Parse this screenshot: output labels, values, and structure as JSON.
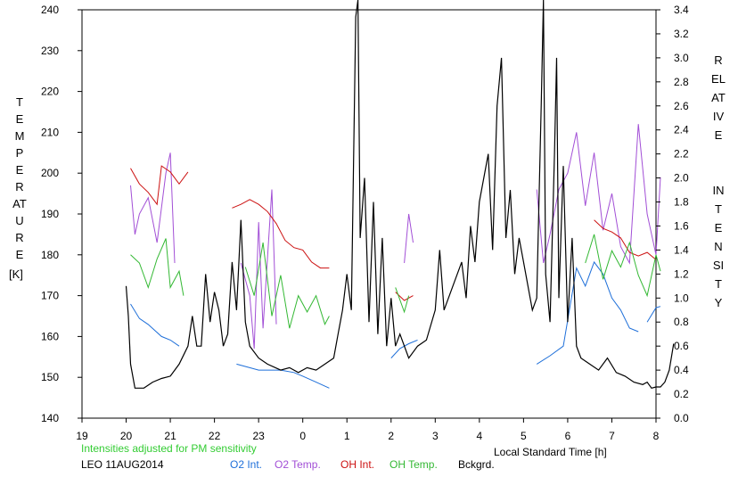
{
  "chart_data": {
    "type": "line",
    "title": "",
    "footer": {
      "note": "Intensities adjusted for PM sensitivity",
      "station_date": "LEO 11AUG2014",
      "xlabel": "Local Standard Time [h]"
    },
    "y_left": {
      "label_letters": "TEMPERATURE",
      "unit": "[K]",
      "range": [
        140,
        240
      ],
      "ticks": [
        "140",
        "150",
        "160",
        "170",
        "180",
        "190",
        "200",
        "210",
        "220",
        "230",
        "240"
      ]
    },
    "y_right": {
      "label_word1": "RELATIVE",
      "label_word2": "INTENSITY",
      "range": [
        0.0,
        3.4
      ],
      "ticks": [
        "0.0",
        "0.2",
        "0.4",
        "0.6",
        "0.8",
        "1.0",
        "1.2",
        "1.4",
        "1.6",
        "1.8",
        "2.0",
        "2.2",
        "2.4",
        "2.6",
        "2.8",
        "3.0",
        "3.2",
        "3.4"
      ]
    },
    "x_axis": {
      "range_hours_from_19": [
        0,
        13
      ],
      "ticks": [
        "19",
        "20",
        "21",
        "22",
        "23",
        "0",
        "1",
        "2",
        "3",
        "4",
        "5",
        "6",
        "7",
        "8"
      ]
    },
    "grid": false,
    "legend_position": "bottom",
    "legend": [
      {
        "name": "O2 Int.",
        "color": "#1e6fd9"
      },
      {
        "name": "O2 Temp.",
        "color": "#a24fd6"
      },
      {
        "name": "OH Int.",
        "color": "#cc1111"
      },
      {
        "name": "OH Temp.",
        "color": "#33b833"
      },
      {
        "name": "Bckgrd.",
        "color": "#000000"
      }
    ],
    "series": [
      {
        "name": "O2 Int.",
        "axis": "right",
        "color": "#1e6fd9",
        "segments": [
          [
            [
              20.1,
              0.95
            ],
            [
              20.3,
              0.83
            ],
            [
              20.5,
              0.78
            ],
            [
              20.8,
              0.68
            ],
            [
              21.0,
              0.65
            ],
            [
              21.2,
              0.6
            ]
          ],
          [
            [
              22.5,
              0.45
            ],
            [
              22.8,
              0.42
            ],
            [
              23.0,
              0.4
            ],
            [
              23.5,
              0.4
            ],
            [
              23.8,
              0.38
            ],
            [
              24.0,
              0.35
            ],
            [
              24.3,
              0.3
            ],
            [
              24.6,
              0.25
            ]
          ],
          [
            [
              26.0,
              0.5
            ],
            [
              26.2,
              0.58
            ],
            [
              26.4,
              0.62
            ],
            [
              26.6,
              0.65
            ]
          ],
          [
            [
              29.3,
              0.45
            ],
            [
              29.6,
              0.52
            ],
            [
              29.9,
              0.6
            ],
            [
              30.2,
              1.25
            ],
            [
              30.4,
              1.1
            ],
            [
              30.6,
              1.3
            ],
            [
              30.8,
              1.2
            ],
            [
              31.0,
              1.0
            ],
            [
              31.2,
              0.9
            ],
            [
              31.4,
              0.75
            ],
            [
              31.6,
              0.72
            ]
          ],
          [
            [
              31.8,
              0.8
            ],
            [
              32.0,
              0.92
            ],
            [
              32.1,
              0.93
            ]
          ]
        ]
      },
      {
        "name": "O2 Temp.",
        "axis": "left",
        "color": "#a24fd6",
        "segments": [
          [
            [
              20.1,
              197
            ],
            [
              20.2,
              185
            ],
            [
              20.3,
              190
            ],
            [
              20.5,
              194
            ],
            [
              20.7,
              183
            ],
            [
              20.9,
              200
            ],
            [
              21.0,
              205
            ],
            [
              21.1,
              178
            ]
          ],
          [
            [
              22.6,
              178
            ],
            [
              22.8,
              170
            ],
            [
              22.9,
              157
            ],
            [
              23.0,
              188
            ],
            [
              23.1,
              162
            ],
            [
              23.3,
              196
            ],
            [
              23.4,
              163
            ]
          ],
          [
            [
              26.3,
              178
            ],
            [
              26.4,
              190
            ],
            [
              26.5,
              183
            ]
          ],
          [
            [
              29.3,
              196
            ],
            [
              29.45,
              178
            ],
            [
              29.6,
              185
            ],
            [
              29.8,
              196
            ],
            [
              30.0,
              200
            ],
            [
              30.2,
              210
            ],
            [
              30.4,
              192
            ],
            [
              30.6,
              205
            ],
            [
              30.8,
              186
            ],
            [
              31.0,
              195
            ],
            [
              31.2,
              182
            ],
            [
              31.4,
              178
            ],
            [
              31.6,
              212
            ],
            [
              31.8,
              190
            ],
            [
              32.0,
              180
            ],
            [
              32.1,
              199
            ]
          ]
        ]
      },
      {
        "name": "OH Int.",
        "axis": "right",
        "color": "#cc1111",
        "segments": [
          [
            [
              20.1,
              2.08
            ],
            [
              20.3,
              1.95
            ],
            [
              20.5,
              1.88
            ],
            [
              20.7,
              1.78
            ],
            [
              20.8,
              2.1
            ],
            [
              21.0,
              2.05
            ],
            [
              21.2,
              1.95
            ],
            [
              21.4,
              2.05
            ]
          ],
          [
            [
              22.4,
              1.75
            ],
            [
              22.6,
              1.78
            ],
            [
              22.8,
              1.82
            ],
            [
              23.0,
              1.78
            ],
            [
              23.2,
              1.72
            ],
            [
              23.4,
              1.62
            ],
            [
              23.6,
              1.48
            ],
            [
              23.8,
              1.42
            ],
            [
              24.0,
              1.4
            ],
            [
              24.2,
              1.3
            ],
            [
              24.4,
              1.25
            ],
            [
              24.6,
              1.25
            ]
          ],
          [
            [
              26.1,
              1.05
            ],
            [
              26.3,
              0.98
            ],
            [
              26.5,
              1.02
            ]
          ],
          [
            [
              30.6,
              1.65
            ],
            [
              30.8,
              1.58
            ],
            [
              31.0,
              1.55
            ],
            [
              31.2,
              1.5
            ],
            [
              31.4,
              1.38
            ],
            [
              31.6,
              1.35
            ],
            [
              31.8,
              1.38
            ],
            [
              32.0,
              1.32
            ]
          ]
        ]
      },
      {
        "name": "OH Temp.",
        "axis": "left",
        "color": "#33b833",
        "segments": [
          [
            [
              20.1,
              180
            ],
            [
              20.3,
              178
            ],
            [
              20.5,
              172
            ],
            [
              20.7,
              179
            ],
            [
              20.9,
              184
            ],
            [
              21.0,
              172
            ],
            [
              21.2,
              176
            ],
            [
              21.3,
              170
            ]
          ],
          [
            [
              22.7,
              177
            ],
            [
              22.9,
              170
            ],
            [
              23.1,
              183
            ],
            [
              23.3,
              165
            ],
            [
              23.5,
              175
            ],
            [
              23.7,
              162
            ],
            [
              23.9,
              170
            ],
            [
              24.1,
              166
            ],
            [
              24.3,
              170
            ],
            [
              24.5,
              163
            ],
            [
              24.6,
              165
            ]
          ],
          [
            [
              26.1,
              172
            ],
            [
              26.3,
              166
            ],
            [
              26.4,
              170
            ]
          ],
          [
            [
              30.4,
              178
            ],
            [
              30.6,
              185
            ],
            [
              30.8,
              174
            ],
            [
              31.0,
              181
            ],
            [
              31.2,
              177
            ],
            [
              31.4,
              183
            ],
            [
              31.6,
              175
            ],
            [
              31.8,
              170
            ],
            [
              32.0,
              180
            ],
            [
              32.1,
              176
            ]
          ]
        ]
      },
      {
        "name": "Bckgrd.",
        "axis": "right",
        "color": "#000000",
        "segments": [
          [
            [
              20.0,
              1.1
            ],
            [
              20.05,
              0.85
            ],
            [
              20.1,
              0.45
            ],
            [
              20.2,
              0.25
            ],
            [
              20.4,
              0.25
            ],
            [
              20.6,
              0.3
            ],
            [
              20.8,
              0.33
            ],
            [
              21.0,
              0.35
            ],
            [
              21.2,
              0.45
            ],
            [
              21.4,
              0.6
            ],
            [
              21.5,
              0.85
            ],
            [
              21.6,
              0.6
            ],
            [
              21.7,
              0.6
            ],
            [
              21.8,
              1.2
            ],
            [
              21.9,
              0.8
            ],
            [
              22.0,
              1.05
            ],
            [
              22.1,
              0.9
            ],
            [
              22.2,
              0.6
            ],
            [
              22.3,
              0.7
            ],
            [
              22.4,
              1.3
            ],
            [
              22.5,
              0.9
            ],
            [
              22.6,
              1.65
            ],
            [
              22.7,
              0.8
            ],
            [
              22.8,
              0.6
            ],
            [
              23.0,
              0.5
            ],
            [
              23.2,
              0.45
            ],
            [
              23.5,
              0.4
            ],
            [
              23.7,
              0.42
            ],
            [
              23.9,
              0.38
            ],
            [
              24.1,
              0.42
            ],
            [
              24.3,
              0.4
            ],
            [
              24.5,
              0.45
            ],
            [
              24.7,
              0.5
            ],
            [
              24.8,
              0.7
            ],
            [
              24.9,
              0.9
            ],
            [
              25.0,
              1.2
            ],
            [
              25.1,
              0.9
            ],
            [
              25.2,
              3.34
            ],
            [
              25.25,
              3.5
            ],
            [
              25.3,
              1.5
            ],
            [
              25.4,
              2.0
            ],
            [
              25.5,
              0.8
            ],
            [
              25.6,
              1.8
            ],
            [
              25.7,
              0.7
            ],
            [
              25.8,
              1.5
            ],
            [
              25.9,
              0.6
            ],
            [
              26.0,
              1.0
            ],
            [
              26.1,
              0.6
            ],
            [
              26.2,
              0.7
            ],
            [
              26.4,
              0.5
            ],
            [
              26.6,
              0.6
            ],
            [
              26.8,
              0.65
            ],
            [
              27.0,
              0.9
            ],
            [
              27.1,
              1.4
            ],
            [
              27.2,
              0.9
            ],
            [
              27.4,
              1.1
            ],
            [
              27.6,
              1.3
            ],
            [
              27.7,
              1.0
            ],
            [
              27.8,
              1.6
            ],
            [
              27.9,
              1.3
            ],
            [
              28.0,
              1.8
            ],
            [
              28.2,
              2.2
            ],
            [
              28.3,
              1.4
            ],
            [
              28.4,
              2.6
            ],
            [
              28.5,
              3.0
            ],
            [
              28.6,
              1.5
            ],
            [
              28.7,
              1.9
            ],
            [
              28.8,
              1.2
            ],
            [
              28.9,
              1.5
            ],
            [
              29.0,
              1.3
            ],
            [
              29.2,
              0.9
            ],
            [
              29.3,
              1.0
            ],
            [
              29.4,
              2.6
            ],
            [
              29.45,
              3.5
            ],
            [
              29.5,
              1.2
            ],
            [
              29.6,
              0.8
            ],
            [
              29.7,
              2.2
            ],
            [
              29.75,
              3.0
            ],
            [
              29.8,
              1.0
            ],
            [
              29.9,
              2.1
            ],
            [
              30.0,
              0.8
            ],
            [
              30.1,
              1.5
            ],
            [
              30.2,
              0.6
            ],
            [
              30.3,
              0.5
            ],
            [
              30.5,
              0.45
            ],
            [
              30.7,
              0.4
            ],
            [
              30.9,
              0.5
            ],
            [
              31.1,
              0.38
            ],
            [
              31.3,
              0.35
            ],
            [
              31.5,
              0.3
            ],
            [
              31.7,
              0.28
            ],
            [
              31.8,
              0.3
            ],
            [
              31.9,
              0.25
            ],
            [
              32.0,
              0.26
            ],
            [
              32.1,
              0.26
            ],
            [
              32.2,
              0.3
            ],
            [
              32.3,
              0.4
            ],
            [
              32.4,
              0.62
            ]
          ]
        ]
      }
    ]
  }
}
